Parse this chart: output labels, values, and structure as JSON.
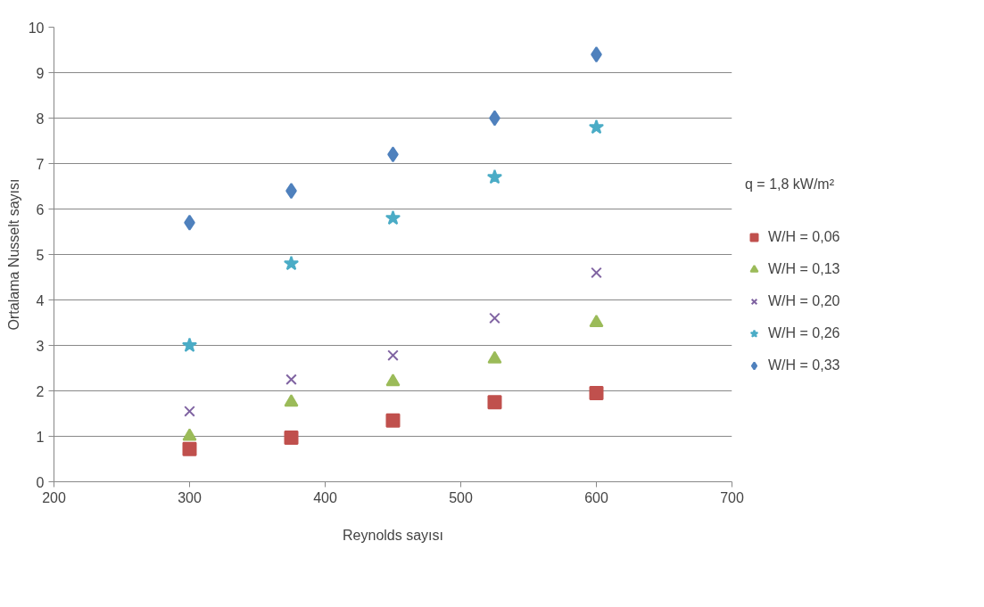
{
  "chart_data": {
    "type": "scatter",
    "xlabel": "Reynolds sayısı",
    "ylabel": "Ortalama Nusselt sayısı",
    "legend_title": "q = 1,8 kW/m²",
    "x": [
      300,
      375,
      450,
      525,
      600
    ],
    "series": [
      {
        "name": "W/H = 0,06",
        "color": "#c0504d",
        "marker": "square",
        "values": [
          0.72,
          0.97,
          1.35,
          1.75,
          1.95
        ]
      },
      {
        "name": "W/H = 0,13",
        "color": "#9bbb59",
        "marker": "triangle",
        "values": [
          1.0,
          1.75,
          2.2,
          2.7,
          3.5
        ]
      },
      {
        "name": "W/H = 0,20",
        "color": "#8064a2",
        "marker": "cross",
        "values": [
          1.55,
          2.25,
          2.78,
          3.6,
          4.6
        ]
      },
      {
        "name": "W/H = 0,26",
        "color": "#4bacc6",
        "marker": "star",
        "values": [
          3.0,
          4.8,
          5.8,
          6.7,
          7.8
        ]
      },
      {
        "name": "W/H = 0,33",
        "color": "#4f81bd",
        "marker": "diamond",
        "values": [
          5.7,
          6.4,
          7.2,
          8.0,
          9.4
        ]
      }
    ],
    "xlim": [
      200,
      700
    ],
    "xticks": [
      200,
      300,
      400,
      500,
      600,
      700
    ],
    "ylim": [
      0,
      10
    ],
    "yticks": [
      0,
      1,
      2,
      3,
      4,
      5,
      6,
      7,
      8,
      9,
      10
    ],
    "grid": "y",
    "legend": "right"
  }
}
